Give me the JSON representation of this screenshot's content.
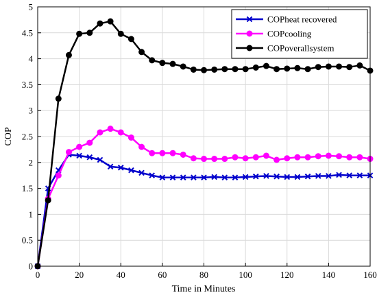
{
  "chart_data": {
    "type": "line",
    "title": "",
    "xlabel": "Time in Minutes",
    "ylabel": "COP",
    "xlim": [
      0,
      160
    ],
    "ylim": [
      0,
      5
    ],
    "xticks": [
      0,
      20,
      40,
      60,
      80,
      100,
      120,
      140,
      160
    ],
    "yticks": [
      0,
      0.5,
      1,
      1.5,
      2,
      2.5,
      3,
      3.5,
      4,
      4.5,
      5
    ],
    "grid": true,
    "legend_position": "top-right",
    "series": [
      {
        "name": "COPheat recovered",
        "color": "#0000cc",
        "marker": "x",
        "x": [
          0,
          5,
          10,
          15,
          20,
          25,
          30,
          35,
          40,
          45,
          50,
          55,
          60,
          65,
          70,
          75,
          80,
          85,
          90,
          95,
          100,
          105,
          110,
          115,
          120,
          125,
          130,
          135,
          140,
          145,
          150,
          155,
          160
        ],
        "y": [
          0,
          1.5,
          1.85,
          2.15,
          2.13,
          2.1,
          2.05,
          1.92,
          1.9,
          1.85,
          1.8,
          1.75,
          1.71,
          1.71,
          1.71,
          1.71,
          1.71,
          1.72,
          1.71,
          1.71,
          1.72,
          1.73,
          1.74,
          1.73,
          1.72,
          1.72,
          1.73,
          1.74,
          1.74,
          1.76,
          1.75,
          1.75,
          1.75
        ]
      },
      {
        "name": "COPcooling",
        "color": "#ff00ff",
        "marker": "circle",
        "x": [
          0,
          5,
          10,
          15,
          20,
          25,
          30,
          35,
          40,
          45,
          50,
          55,
          60,
          65,
          70,
          75,
          80,
          85,
          90,
          95,
          100,
          105,
          110,
          115,
          120,
          125,
          130,
          135,
          140,
          145,
          150,
          155,
          160
        ],
        "y": [
          0,
          1.3,
          1.75,
          2.2,
          2.3,
          2.38,
          2.58,
          2.65,
          2.58,
          2.48,
          2.3,
          2.18,
          2.18,
          2.18,
          2.15,
          2.08,
          2.07,
          2.07,
          2.07,
          2.1,
          2.08,
          2.1,
          2.13,
          2.05,
          2.08,
          2.1,
          2.1,
          2.12,
          2.13,
          2.12,
          2.1,
          2.1,
          2.07
        ]
      },
      {
        "name": "COPoverallsystem",
        "color": "#000000",
        "marker": "circle",
        "x": [
          0,
          5,
          10,
          15,
          20,
          25,
          30,
          35,
          40,
          45,
          50,
          55,
          60,
          65,
          70,
          75,
          80,
          85,
          90,
          95,
          100,
          105,
          110,
          115,
          120,
          125,
          130,
          135,
          140,
          145,
          150,
          155,
          160
        ],
        "y": [
          0,
          1.27,
          3.23,
          4.07,
          4.48,
          4.5,
          4.68,
          4.72,
          4.48,
          4.38,
          4.13,
          3.97,
          3.92,
          3.9,
          3.85,
          3.79,
          3.78,
          3.79,
          3.8,
          3.8,
          3.8,
          3.83,
          3.86,
          3.8,
          3.81,
          3.82,
          3.8,
          3.84,
          3.85,
          3.85,
          3.84,
          3.87,
          3.77
        ]
      }
    ]
  }
}
